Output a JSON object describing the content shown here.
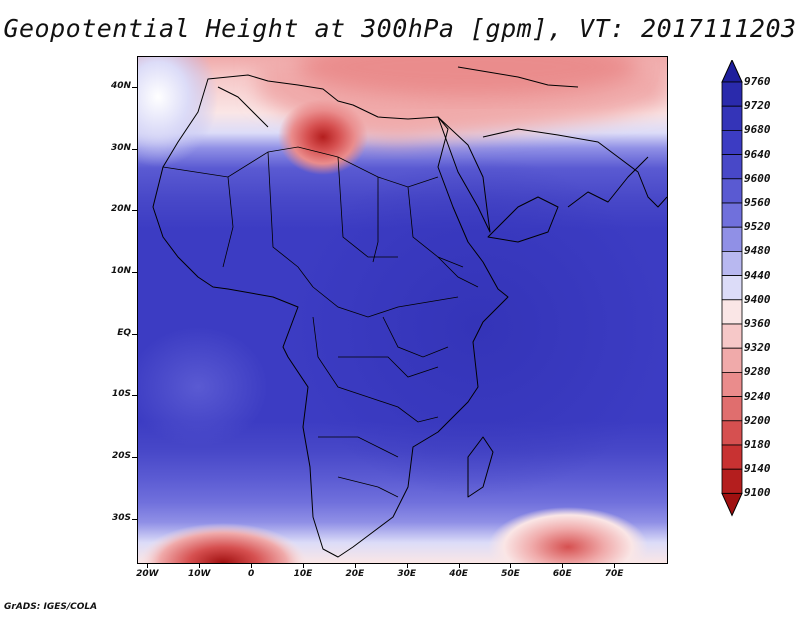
{
  "title": "Geopotential Height at 300hPa [gpm], VT: 2017111203",
  "credit": "GrADS: IGES/COLA",
  "map": {
    "lon_range": [
      -22,
      80
    ],
    "lat_range": [
      -37,
      45
    ],
    "lat_ticks": [
      {
        "value": 40,
        "label": "40N"
      },
      {
        "value": 30,
        "label": "30N"
      },
      {
        "value": 20,
        "label": "20N"
      },
      {
        "value": 10,
        "label": "10N"
      },
      {
        "value": 0,
        "label": "EQ"
      },
      {
        "value": -10,
        "label": "10S"
      },
      {
        "value": -20,
        "label": "20S"
      },
      {
        "value": -30,
        "label": "30S"
      }
    ],
    "lon_ticks": [
      {
        "value": -20,
        "label": "20W"
      },
      {
        "value": -10,
        "label": "10W"
      },
      {
        "value": 0,
        "label": "0"
      },
      {
        "value": 10,
        "label": "10E"
      },
      {
        "value": 20,
        "label": "20E"
      },
      {
        "value": 30,
        "label": "30E"
      },
      {
        "value": 40,
        "label": "40E"
      },
      {
        "value": 50,
        "label": "50E"
      },
      {
        "value": 60,
        "label": "60E"
      },
      {
        "value": 70,
        "label": "70E"
      }
    ]
  },
  "colorbar": {
    "levels": [
      "9760",
      "9720",
      "9680",
      "9640",
      "9600",
      "9560",
      "9520",
      "9480",
      "9440",
      "9400",
      "9360",
      "9320",
      "9280",
      "9240",
      "9200",
      "9180",
      "9140",
      "9100"
    ],
    "colors": [
      "#1e1e9c",
      "#2a2aac",
      "#3434b8",
      "#3c3cc3",
      "#4848c8",
      "#5a5ad2",
      "#7070dc",
      "#9090e6",
      "#b8b8f0",
      "#dcdcf8",
      "#fae6e6",
      "#f6c8c8",
      "#f0aaaa",
      "#ea8c8c",
      "#e06e6e",
      "#d65050",
      "#c83232",
      "#b41e1e",
      "#a01010"
    ]
  }
}
